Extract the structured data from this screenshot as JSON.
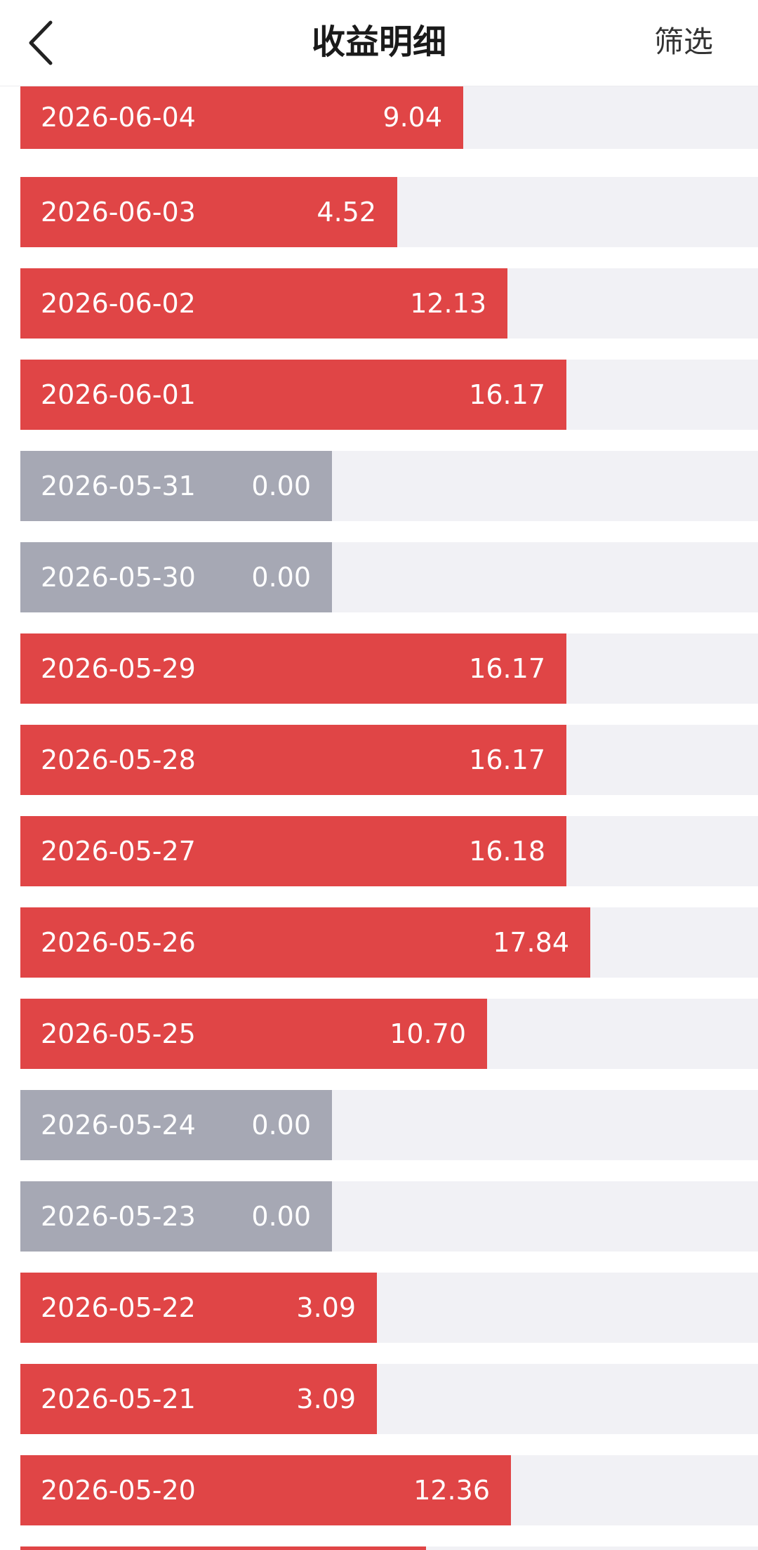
{
  "header": {
    "title": "收益明细",
    "filter_label": "筛选",
    "back_icon": "chevron-left-icon"
  },
  "colors": {
    "positive_bar": "#e04546",
    "zero_bar": "#a6a8b4",
    "track": "#f1f1f5"
  },
  "earnings": {
    "max_scale": 29.4,
    "rows": [
      {
        "date": "2026-06-04",
        "value": "9.04"
      },
      {
        "date": "2026-06-03",
        "value": "4.52"
      },
      {
        "date": "2026-06-02",
        "value": "12.13"
      },
      {
        "date": "2026-06-01",
        "value": "16.17"
      },
      {
        "date": "2026-05-31",
        "value": "0.00"
      },
      {
        "date": "2026-05-30",
        "value": "0.00"
      },
      {
        "date": "2026-05-29",
        "value": "16.17"
      },
      {
        "date": "2026-05-28",
        "value": "16.17"
      },
      {
        "date": "2026-05-27",
        "value": "16.18"
      },
      {
        "date": "2026-05-26",
        "value": "17.84"
      },
      {
        "date": "2026-05-25",
        "value": "10.70"
      },
      {
        "date": "2026-05-24",
        "value": "0.00"
      },
      {
        "date": "2026-05-23",
        "value": "0.00"
      },
      {
        "date": "2026-05-22",
        "value": "3.09"
      },
      {
        "date": "2026-05-21",
        "value": "3.09"
      },
      {
        "date": "2026-05-20",
        "value": "12.36"
      }
    ]
  }
}
